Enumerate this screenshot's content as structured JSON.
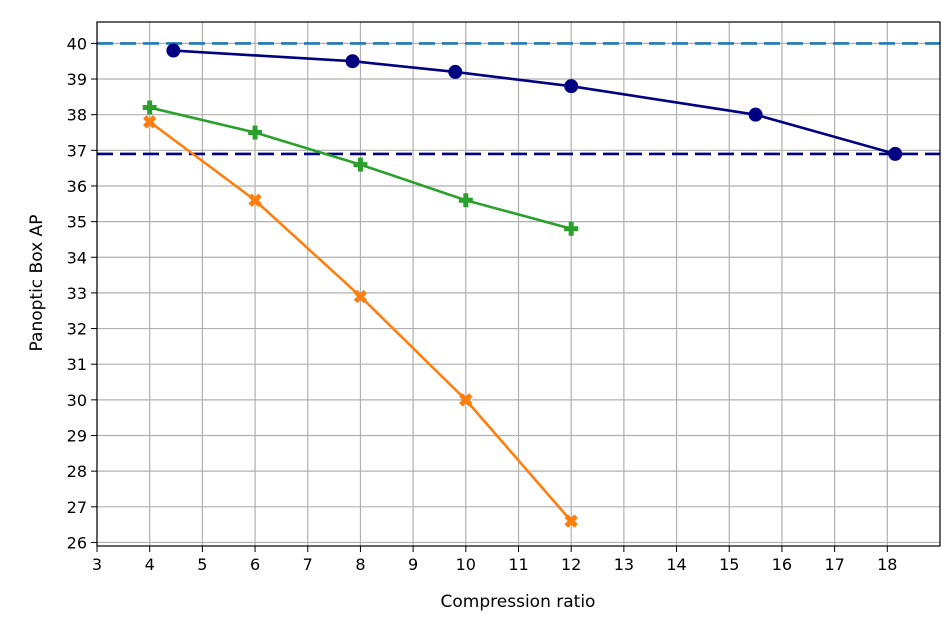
{
  "chart_data": {
    "type": "line",
    "title": "",
    "xlabel": "Compression ratio",
    "ylabel": "Panoptic Box AP",
    "xlim": [
      3,
      19
    ],
    "ylim": [
      25.9,
      40.6
    ],
    "xticks": [
      3,
      4,
      5,
      6,
      7,
      8,
      9,
      10,
      11,
      12,
      13,
      14,
      15,
      16,
      17,
      18
    ],
    "yticks": [
      26,
      27,
      28,
      29,
      30,
      31,
      32,
      33,
      34,
      35,
      36,
      37,
      38,
      39,
      40
    ],
    "grid": true,
    "legend": "none",
    "series": [
      {
        "color": "#000080",
        "marker": "circle",
        "points": [
          [
            4.45,
            39.8
          ],
          [
            7.85,
            39.5
          ],
          [
            9.8,
            39.2
          ],
          [
            12.0,
            38.8
          ],
          [
            15.5,
            38.0
          ],
          [
            18.15,
            36.9
          ]
        ]
      },
      {
        "color": "#2ca02c",
        "marker": "plus",
        "points": [
          [
            4,
            38.2
          ],
          [
            6,
            37.5
          ],
          [
            8,
            36.6
          ],
          [
            10,
            35.6
          ],
          [
            12,
            34.8
          ]
        ]
      },
      {
        "color": "#ff7f0e",
        "marker": "x",
        "points": [
          [
            4,
            37.8
          ],
          [
            6,
            35.6
          ],
          [
            8,
            32.9
          ],
          [
            10,
            30.0
          ],
          [
            12,
            26.6
          ]
        ]
      }
    ],
    "reference_lines": [
      {
        "y": 40.0,
        "color": "#1f77b4",
        "style": "dashed"
      },
      {
        "y": 36.9,
        "color": "#000080",
        "style": "dashed"
      }
    ]
  }
}
